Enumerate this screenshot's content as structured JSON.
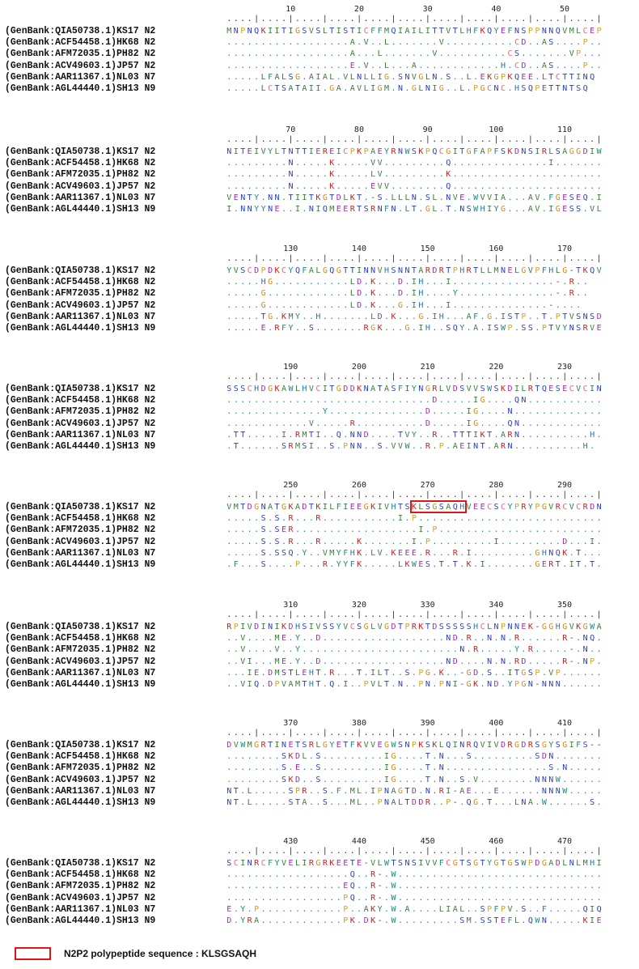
{
  "labels": [
    "(GenBank:QIA50738.1)KS17 N2",
    "(GenBank:ACF54458.1)HK68 N2",
    "(GenBank:AFM72035.1)PH82 N2",
    "(GenBank:ACV49603.1)JP57 N2",
    "(GenBank:AAR11367.1)NL03 N7",
    "(GenBank:AGL44440.1)SH13 N9"
  ],
  "blocks": [
    {
      "ruler": [
        "10",
        "20",
        "30",
        "40",
        "50"
      ],
      "rows": [
        "MNPNQKIITIGSVSLTISTICFFMQIAILITTVTLHFKQYEFNSPPNNQVMLCEP",
        "..................A.V..L.......V..........CD..AS....P...",
        "..................A...L.......V..........CS.......VP....",
        "..................E.V..L...A............H.CD..AS....P...",
        ".....LFALSG.AIAL.VLNLLIG.SNVGLN.S..L.EKGPKQEE.LTCTTINQ",
        ".....LCTSATAII.GA.AVLIGM.N.GLNIG..L.PGCNC.HSQPETTNTSQ"
      ]
    },
    {
      "ruler": [
        "70",
        "80",
        "90",
        "100",
        "110"
      ],
      "rows": [
        "NITEIVYLTNTTIERE ICPKPAEYRNWSKPQCGITGFAPFSKDNSIRLSAGGDIW",
        ".........N.....K.....VV.........Q..............I........",
        ".........N.....K.....LV.........K.......................",
        ".........N.....K.....EVV........Q.......................",
        "VENTY.NN.TIITKGTDLKT.-S.LLLN.SL.NVE.WVVIA...AV.FGESEQ.I",
        "I.NNYYNE..I.NIQMEERTSRNFN.LT.GL.T.NSWHIYG...AV.IGESS.VL"
      ]
    },
    {
      "ruler": [
        "130",
        "140",
        "150",
        "160",
        "170"
      ],
      "rows": [
        "YVSCDPDKCYQFALGQGTTINNVHSNNTARDRTPHRTLLMNELGVPFHLG-TKQV",
        ".....HG...........LD.K...D.IH...I...............-.R..",
        ".....G............LD.K...D.IH....Y..............-.R..",
        ".....G............LD.K...G.IH...I..............-....",
        ".....TG.KMY..H.......LD.K...G.IH...AF.G.ISTP..T.PTVSNSDFM",
        ".....E.RFY..S.......RGK...G.IH..SQY.A.ISWP.SS.PTVYNSRVE"
      ]
    },
    {
      "ruler": [
        "190",
        "200",
        "210",
        "220",
        "230"
      ],
      "rows": [
        "SSSCHDGKAWLHVCITGDDKNATASFIYNGRLVDSVVSWSKDILRTQESECVCIN",
        "..............................D.....IG....QN............",
        "..............Y..............D.....IG....N.............",
        "............V.....R..........D.....IG....QN............",
        ".TT.....I.RMTI..Q.NND....TVY..R..TTTIKT.ARN..........H.",
        ".T......SRMSI..S.PNN..S.VVW..R.P.AEINT.ARN..........H."
      ]
    },
    {
      "ruler": [
        "250",
        "260",
        "270",
        "280",
        "290"
      ],
      "rows": [
        "VMTDGNATGKADTKILFIEEGKIVHTSKLSGSAQHVEECSCYPRYPGVRCVCRDN",
        ".....S.S.R...R...........I.P...........................I.....",
        ".....S.SER..................I.P..........................I.....",
        ".....S.S.R...R.....K.......I.P.........I.........D...I...",
        ".....S.SSQ.Y..VMYFHK.LV.KEEE.R...R.I.........GHNQK.T......",
        ".F...S....P...R.YYFK.....LKWES.T.T.K.I.......GERT.IT.T...."
      ]
    },
    {
      "ruler": [
        "310",
        "320",
        "330",
        "340",
        "350"
      ],
      "rows": [
        "RPIVDINIKDHSIVSSYVCSGLVGDTPRKTDSSSSSHCLNPNNEK-GGHGVKGWA",
        "..V....ME.Y..D..................ND.R..N.N.R......R-.NQ......",
        "..V....V..Y.......................N.R.....Y.R.....-.N.......",
        "..VI...ME.Y..D..................ND....N.N.RD.....R-.NP......",
        "...IE.DMSTLEHT.R...T.ILT..S.PG.K..-GD.S..ITGSP.VP......FG",
        "..VIQ.DPVAMTHT.Q.I..PVLT.N..PN.PNI-GK.ND.YPGN-NNN......FS"
      ]
    },
    {
      "ruler": [
        "370",
        "380",
        "390",
        "400",
        "410"
      ],
      "rows": [
        "DVWMGRTINETSRLGYETFKVVEGWSNPKSKLQINRQVIVDRGDRSGYSGIFS--",
        "........SKDL.S.........IG....T.N...S.........SDN.........--",
        "........S.E..S.........IG....T.N...............S.N........--",
        "........SKD..S.........IG....T.N..S.V........NNNW........--",
        "NT.L.....SPR..S.F.ML.IPNAGTD.N.RI-AE...E......NNNW.....S.IDY",
        "NT.L.....STA..S...ML..PNALTDDR..P-.QG.T...LNA.W......S.MDY"
      ]
    },
    {
      "ruler": [
        "430",
        "440",
        "450",
        "460",
        "470"
      ],
      "rows": [
        "SCINRCFYVELIRGRKEETE-VLWTSNSIVVFCGTSGTYGTGSWPDGADLNLMHI",
        "..................Q..R-.W...................................NI.F.P.",
        ".................EQ..R-.W...................................I...P.",
        ".................PQ..R-.W...................................NI.F.P.",
        "E.Y.P............P..AKY.W.A....LIAL..SPFPV.S..F.....QIQYFS-",
        "D.YRA............PK.DK-.W.........SM.SSTEFL.QWN.....KIEYFL-"
      ]
    }
  ],
  "highlight": {
    "block": 4,
    "start": 27,
    "length": 8
  },
  "legend": {
    "text": "N2P2 polypeptide sequence : KLSGSAQH",
    "color": "#e01515"
  },
  "residue_colors": {
    "A": "#3a7d3a",
    "V": "#3a7d3a",
    "L": "#3a7d3a",
    "I": "#3a7d3a",
    "M": "#3a7d3a",
    "F": "#1f8a7a",
    "W": "#1f8a7a",
    "Y": "#1f8a7a",
    "K": "#c22222",
    "R": "#c22222",
    "H": "#2a7ab0",
    "D": "#9b2fae",
    "E": "#9b2fae",
    "S": "#2a3fbf",
    "T": "#2a3fbf",
    "N": "#2a3fbf",
    "Q": "#2a3fbf",
    "G": "#d48a1a",
    "P": "#d4a21a",
    "C": "#e06a7a",
    ".": "#2a7fb0",
    "-": "#444444",
    " ": "#000000"
  }
}
